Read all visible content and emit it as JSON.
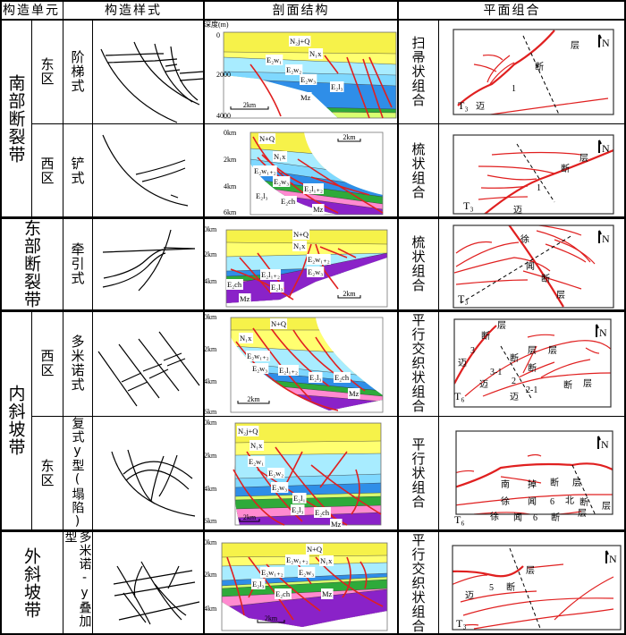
{
  "header": {
    "unit": "构造单元",
    "style": "构造样式",
    "section": "剖面结构",
    "plan": "平面组合"
  },
  "colors": {
    "fault": "#e02020",
    "nq": "#f6f24a",
    "n1x": "#ffff70",
    "w1": "#a8ecff",
    "w2": "#7fd8ff",
    "w3": "#2f8ee8",
    "l12": "#2eaa3a",
    "l3": "#d8ff70",
    "ch": "#ff8ad0",
    "mz": "#8a22c8"
  },
  "rows": [
    {
      "belt": "南部断裂带",
      "zone": "东区",
      "style": "阶梯式",
      "section": {
        "ticks": [
          "深度(m)",
          "0",
          "2000",
          "4000"
        ],
        "labels": [
          "N₂j+Q",
          "N₁x",
          "E₂w₁",
          "E₂w₂",
          "E₂w₃",
          "E₂l₃",
          "Mz"
        ],
        "scale": "2km"
      },
      "combo": "扫帚状组合",
      "plan": {
        "labels": [
          "层",
          "断",
          "1",
          "迈"
        ],
        "horizon": "T₃",
        "north": "N"
      }
    },
    {
      "belt": "",
      "zone": "西区",
      "style": "铲式",
      "section": {
        "ticks": [
          "0km",
          "2km",
          "4km",
          "6km"
        ],
        "labels": [
          "N+Q",
          "N₁x",
          "E₂w₁₊₂",
          "E₂w₃",
          "E₂l₁₊₂",
          "E₂l₃",
          "E₂ch",
          "Mz"
        ],
        "scale": "2km"
      },
      "combo": "梳状组合",
      "plan": {
        "labels": [
          "层",
          "断",
          "1",
          "迈"
        ],
        "horizon": "T₃",
        "north": "N"
      }
    },
    {
      "belt": "东部断裂带",
      "zone": "",
      "style": "牵引式",
      "section": {
        "ticks": [
          "0km",
          "2km",
          "4km"
        ],
        "labels": [
          "N+Q",
          "N₁x",
          "E₂w₁₊₂",
          "E₂w₃",
          "E₂l₁₊₂",
          "E₂l₃",
          "E₂ch",
          "Mz"
        ],
        "scale": "2km"
      },
      "combo": "梳状组合",
      "plan": {
        "labels": [
          "徐",
          "闻",
          "断",
          "层"
        ],
        "horizon": "T₃",
        "north": "N"
      }
    },
    {
      "belt": "内斜坡带",
      "zone": "西区",
      "style": "多米诺式",
      "section": {
        "ticks": [
          "0km",
          "2km",
          "4km",
          "6km"
        ],
        "labels": [
          "N+Q",
          "N₁x",
          "E₂w₁₊₂",
          "E₂w₃",
          "E₂l₁₊₂",
          "E₂l₃",
          "E₂ch",
          "Mz"
        ],
        "scale": "2km"
      },
      "combo": "平行交织状组合",
      "plan": {
        "labels": [
          "层",
          "断",
          "3",
          "迈",
          "3-1",
          "迈",
          "2",
          "迈",
          "2-1",
          "层",
          "断",
          "断",
          "层",
          "断",
          "层"
        ],
        "horizon": "T₆",
        "north": "N"
      }
    },
    {
      "belt": "",
      "zone": "东区",
      "style": "复式y型(塌陷)",
      "section": {
        "ticks": [
          "0km",
          "2km",
          "4km",
          "6km"
        ],
        "labels": [
          "N₂j+Q",
          "N₁x",
          "E₂w₁",
          "E₂w₂",
          "E₂w₃",
          "E₂l₁",
          "E₂l₃",
          "E₂ch",
          "Mz"
        ],
        "scale": "2km"
      },
      "combo": "平行状组合",
      "plan": {
        "labels": [
          "南",
          "掉",
          "断",
          "层",
          "徐",
          "闻",
          "6",
          "北",
          "断",
          "层",
          "徐",
          "闻",
          "6",
          "断",
          "层"
        ],
        "horizon": "T₆",
        "north": "N"
      }
    },
    {
      "belt": "外斜坡带",
      "zone": "",
      "style": "多米诺-y叠加型",
      "section": {
        "ticks": [
          "0km",
          "2km",
          "4km"
        ],
        "labels": [
          "N+Q",
          "N₁x",
          "E₂w₁₊₂",
          "E₂w₃",
          "E₂w₁₊₂",
          "E₂l₃",
          "E₂ch",
          "Mz"
        ],
        "scale": "2km"
      },
      "combo": "平行交织状组合",
      "plan": {
        "labels": [
          "层",
          "5",
          "断",
          "迈"
        ],
        "horizon": "T₃",
        "north": "N"
      }
    }
  ]
}
